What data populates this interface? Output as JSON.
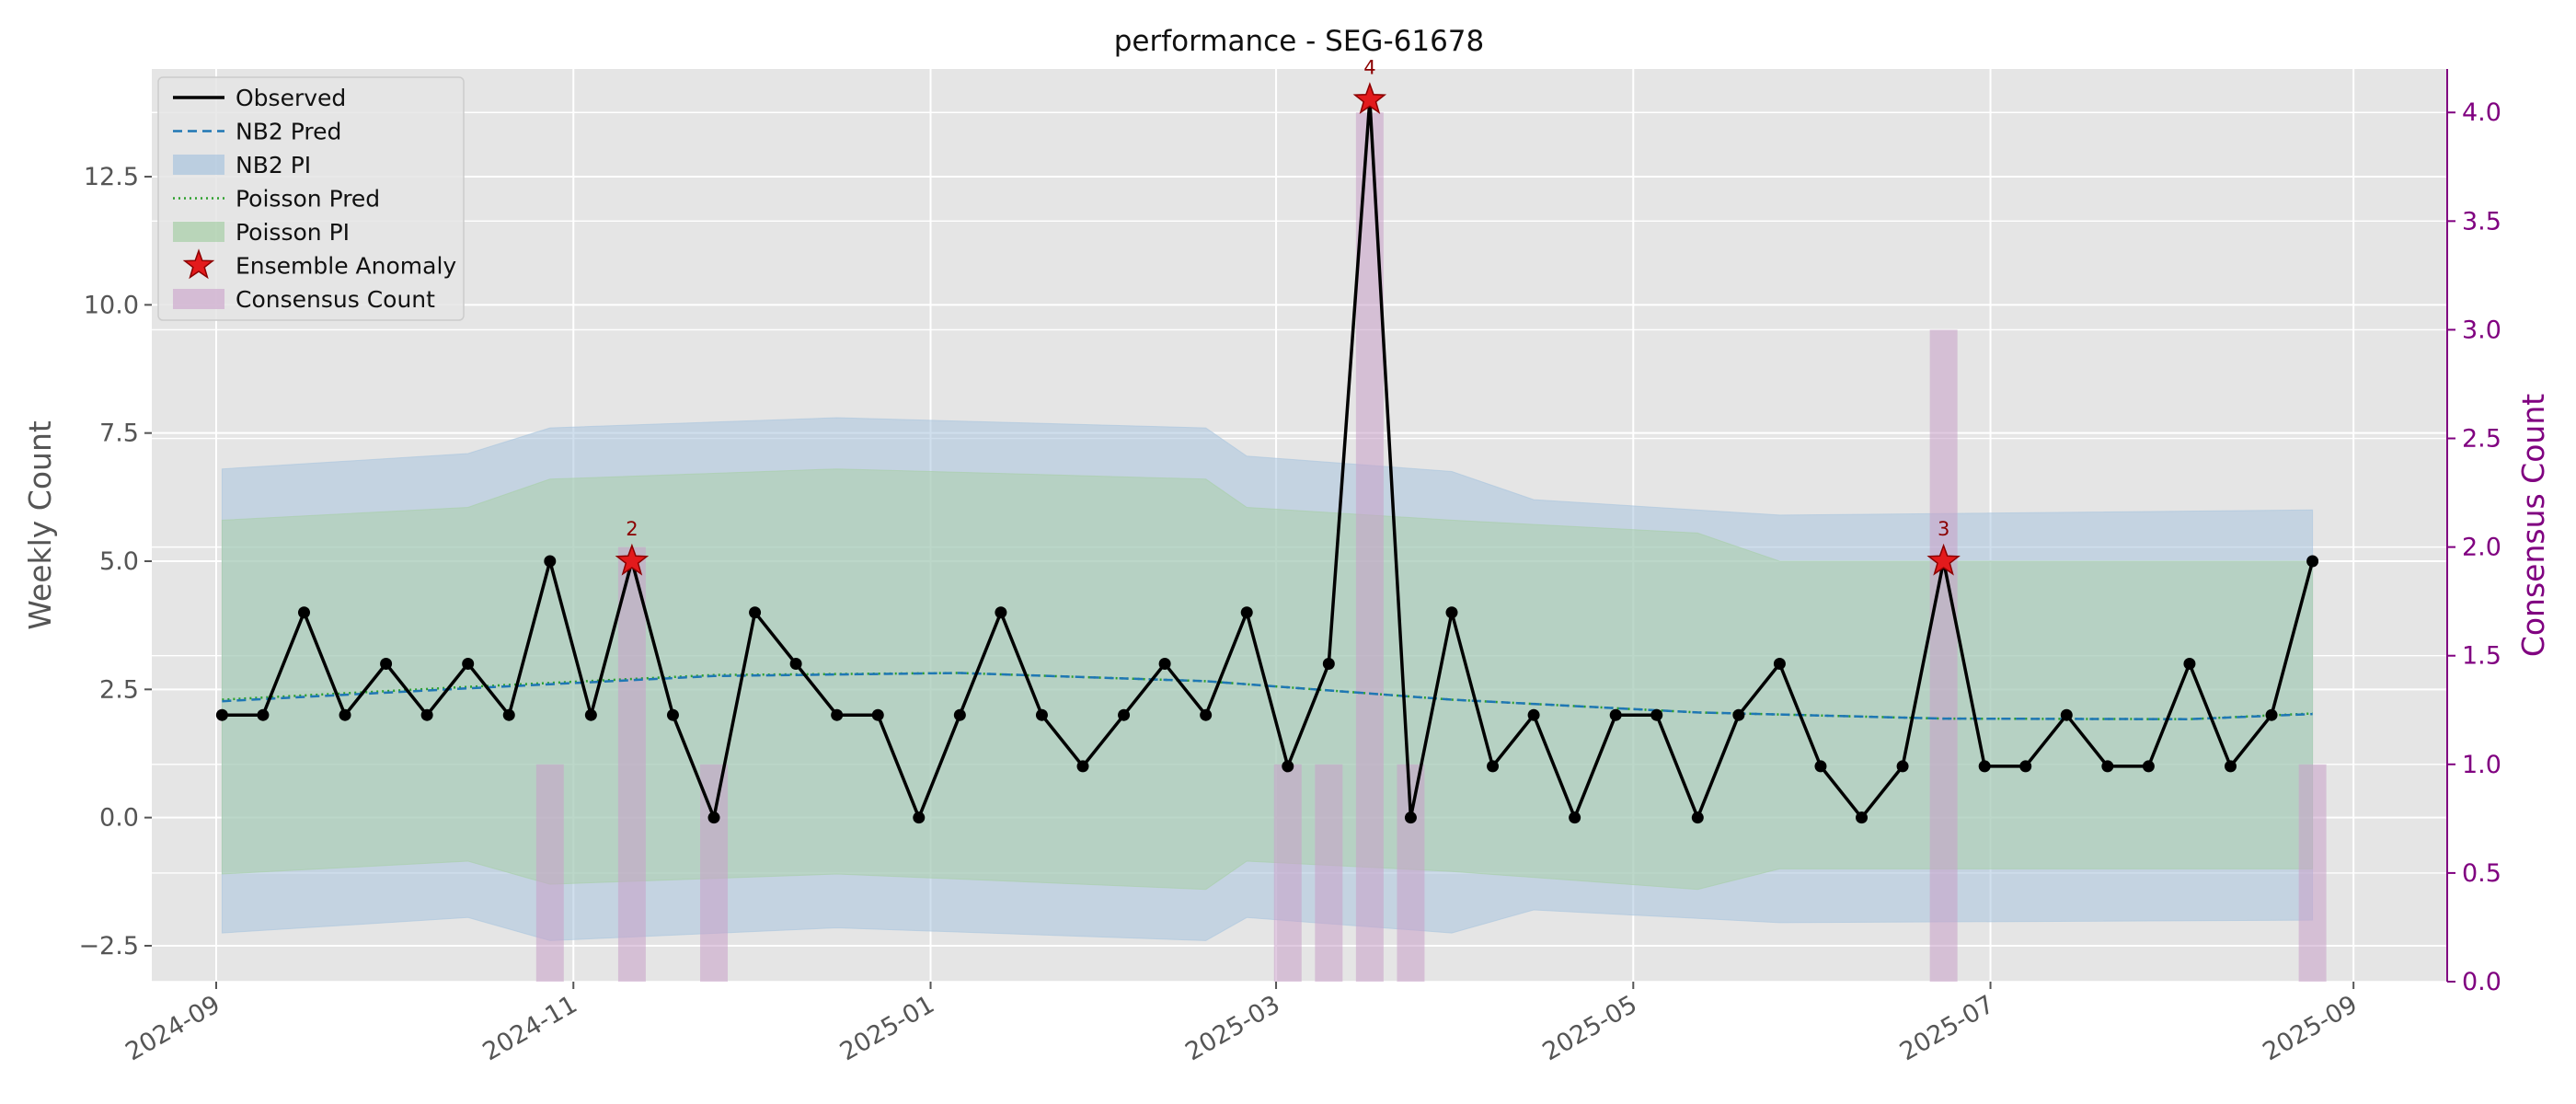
{
  "chart_data": {
    "type": "line",
    "title": "performance - SEG-61678",
    "ylabel": "Weekly Count",
    "y2label": "Consensus Count",
    "xlim": [
      "2024-08-21",
      "2025-09-17"
    ],
    "ylim": [
      -3.2,
      14.6
    ],
    "y2lim": [
      0.0,
      4.2
    ],
    "grid": true,
    "legend_position": "top-left",
    "x_ticks": [
      "2024-09",
      "2024-11",
      "2025-01",
      "2025-03",
      "2025-05",
      "2025-07",
      "2025-09"
    ],
    "x_tick_dates": [
      "2024-09-01",
      "2024-11-01",
      "2025-01-01",
      "2025-03-01",
      "2025-05-01",
      "2025-07-01",
      "2025-09-01"
    ],
    "y_ticks": [
      "−2.5",
      "0.0",
      "2.5",
      "5.0",
      "7.5",
      "10.0",
      "12.5"
    ],
    "y_tick_values": [
      -2.5,
      0,
      2.5,
      5,
      7.5,
      10,
      12.5
    ],
    "y2_ticks": [
      "0.0",
      "0.5",
      "1.0",
      "1.5",
      "2.0",
      "2.5",
      "3.0",
      "3.5",
      "4.0"
    ],
    "y2_tick_values": [
      0,
      0.5,
      1,
      1.5,
      2,
      2.5,
      3,
      3.5,
      4
    ],
    "legend": [
      {
        "label": "Observed",
        "kind": "solid-line"
      },
      {
        "label": "NB2 Pred",
        "kind": "dashed-line"
      },
      {
        "label": "NB2 PI",
        "kind": "band-blue"
      },
      {
        "label": "Poisson Pred",
        "kind": "dotted-line"
      },
      {
        "label": "Poisson PI",
        "kind": "band-green"
      },
      {
        "label": "Ensemble Anomaly",
        "kind": "star"
      },
      {
        "label": "Consensus Count",
        "kind": "bar"
      }
    ],
    "colors": {
      "plot_bg": "#e5e5e5",
      "grid": "#ffffff",
      "observed": "#000000",
      "nb2_pred": "#1f77b4",
      "nb2_band": "#a9c4de",
      "poisson_pred": "#2ca02c",
      "poisson_band": "#a7cfa6",
      "anomaly": "#e31a1c",
      "anomaly_edge": "#8b0000",
      "consensus": "#c9a0c9",
      "y2_axis": "#800080"
    },
    "series": [
      {
        "name": "Observed",
        "x": [
          "2024-09-02",
          "2024-09-09",
          "2024-09-16",
          "2024-09-23",
          "2024-09-30",
          "2024-10-07",
          "2024-10-14",
          "2024-10-21",
          "2024-10-28",
          "2024-11-04",
          "2024-11-11",
          "2024-11-18",
          "2024-11-25",
          "2024-12-02",
          "2024-12-09",
          "2024-12-16",
          "2024-12-23",
          "2024-12-30",
          "2025-01-06",
          "2025-01-13",
          "2025-01-20",
          "2025-01-27",
          "2025-02-03",
          "2025-02-10",
          "2025-02-17",
          "2025-02-24",
          "2025-03-03",
          "2025-03-10",
          "2025-03-17",
          "2025-03-24",
          "2025-03-31",
          "2025-04-07",
          "2025-04-14",
          "2025-04-21",
          "2025-04-28",
          "2025-05-05",
          "2025-05-12",
          "2025-05-19",
          "2025-05-26",
          "2025-06-02",
          "2025-06-09",
          "2025-06-16",
          "2025-06-23",
          "2025-06-30",
          "2025-07-07",
          "2025-07-14",
          "2025-07-21",
          "2025-07-28",
          "2025-08-04",
          "2025-08-11",
          "2025-08-18",
          "2025-08-25"
        ],
        "values": [
          2,
          2,
          4,
          2,
          3,
          2,
          3,
          2,
          5,
          2,
          5,
          2,
          0,
          4,
          3,
          2,
          2,
          0,
          2,
          4,
          2,
          1,
          2,
          3,
          2,
          4,
          1,
          3,
          14,
          0,
          4,
          1,
          2,
          0,
          2,
          2,
          0,
          2,
          3,
          1,
          0,
          1,
          5,
          1,
          1,
          2,
          1,
          1,
          3,
          1,
          2,
          5
        ]
      },
      {
        "name": "NB2 Pred",
        "x": [
          "2024-09-02",
          "2024-10-14",
          "2024-11-25",
          "2025-01-06",
          "2025-02-17",
          "2025-03-31",
          "2025-05-12",
          "2025-06-23",
          "2025-08-04",
          "2025-08-25"
        ],
        "values": [
          2.27,
          2.52,
          2.76,
          2.82,
          2.66,
          2.3,
          2.05,
          1.93,
          1.92,
          2.02
        ]
      },
      {
        "name": "Poisson Pred",
        "x": [
          "2024-09-02",
          "2024-10-14",
          "2024-11-25",
          "2025-01-06",
          "2025-02-17",
          "2025-03-31",
          "2025-05-12",
          "2025-06-23",
          "2025-08-04",
          "2025-08-25"
        ],
        "values": [
          2.3,
          2.55,
          2.78,
          2.82,
          2.66,
          2.3,
          2.05,
          1.93,
          1.92,
          2.03
        ]
      }
    ],
    "nb2_pi": {
      "x": [
        "2024-09-02",
        "2024-10-14",
        "2024-10-28",
        "2024-12-16",
        "2025-02-17",
        "2025-02-24",
        "2025-03-31",
        "2025-04-14",
        "2025-05-26",
        "2025-08-25"
      ],
      "upper": [
        6.8,
        7.1,
        7.6,
        7.8,
        7.6,
        7.05,
        6.75,
        6.2,
        5.9,
        6.0
      ],
      "lower": [
        -2.25,
        -1.95,
        -2.4,
        -2.15,
        -2.4,
        -1.95,
        -2.25,
        -1.8,
        -2.05,
        -2.0
      ]
    },
    "poisson_pi": {
      "x": [
        "2024-09-02",
        "2024-10-14",
        "2024-10-28",
        "2024-12-16",
        "2025-02-17",
        "2025-02-24",
        "2025-03-31",
        "2025-05-12",
        "2025-05-26",
        "2025-08-25"
      ],
      "upper": [
        5.8,
        6.05,
        6.6,
        6.8,
        6.6,
        6.05,
        5.8,
        5.55,
        5.0,
        5.0
      ],
      "lower": [
        -1.1,
        -0.85,
        -1.3,
        -1.1,
        -1.4,
        -0.85,
        -1.05,
        -1.4,
        -1.0,
        -1.0
      ]
    },
    "anomalies": [
      {
        "x": "2024-11-11",
        "y": 5,
        "label": "2"
      },
      {
        "x": "2025-03-17",
        "y": 14,
        "label": "4"
      },
      {
        "x": "2025-06-23",
        "y": 5,
        "label": "3"
      }
    ],
    "consensus": {
      "x": [
        "2024-10-28",
        "2024-11-11",
        "2024-11-25",
        "2025-03-03",
        "2025-03-10",
        "2025-03-17",
        "2025-03-24",
        "2025-06-23",
        "2025-08-25"
      ],
      "values": [
        1,
        2,
        1,
        1,
        1,
        4,
        1,
        3,
        1
      ]
    }
  }
}
